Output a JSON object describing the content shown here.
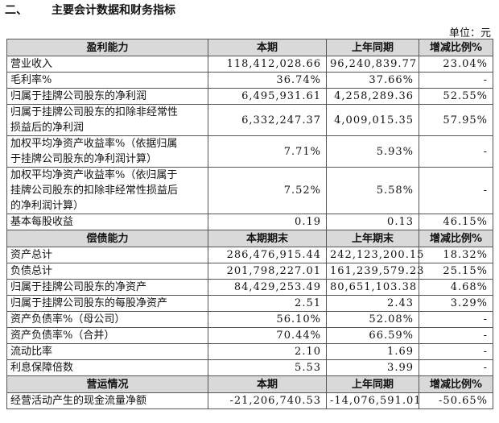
{
  "heading": {
    "number": "二、",
    "text": "主要会计数据和财务指标"
  },
  "unit": "单位：元",
  "sections": [
    {
      "header": [
        "盈利能力",
        "本期",
        "上年同期",
        "增减比例%"
      ],
      "rows": [
        [
          "营业收入",
          "118,412,028.66",
          "96,240,839.77",
          "23.04%"
        ],
        [
          "毛利率%",
          "36.74%",
          "37.66%",
          "-"
        ],
        [
          "归属于挂牌公司股东的净利润",
          "6,495,931.61",
          "4,258,289.36",
          "52.55%"
        ],
        [
          "归属于挂牌公司股东的扣除非经常性损益后的净利润",
          "6,332,247.37",
          "4,009,015.35",
          "57.95%"
        ],
        [
          "加权平均净资产收益率%（依据归属于挂牌公司股东的净利润计算）",
          "7.71%",
          "5.93%",
          "-"
        ],
        [
          "加权平均净资产收益率%（依归属于挂牌公司股东的扣除非经常性损益后的净利润计算）",
          "7.52%",
          "5.58%",
          "-"
        ],
        [
          "基本每股收益",
          "0.19",
          "0.13",
          "46.15%"
        ]
      ]
    },
    {
      "header": [
        "偿债能力",
        "本期期末",
        "上年期末",
        "增减比例%"
      ],
      "rows": [
        [
          "资产总计",
          "286,476,915.44",
          "242,123,200.15",
          "18.32%"
        ],
        [
          "负债总计",
          "201,798,227.01",
          "161,239,579.23",
          "25.15%"
        ],
        [
          "归属于挂牌公司股东的净资产",
          "84,429,253.49",
          "80,651,103.38",
          "4.68%"
        ],
        [
          "归属于挂牌公司股东的每股净资产",
          "2.51",
          "2.43",
          "3.29%"
        ],
        [
          "资产负债率%（母公司）",
          "56.10%",
          "52.08%",
          "-"
        ],
        [
          "资产负债率%（合并）",
          "70.44%",
          "66.59%",
          "-"
        ],
        [
          "流动比率",
          "2.10",
          "1.69",
          "-"
        ],
        [
          "利息保障倍数",
          "5.53",
          "3.99",
          "-"
        ]
      ]
    },
    {
      "header": [
        "营运情况",
        "本期",
        "上年同期",
        "增减比例%"
      ],
      "rows": [
        [
          "经营活动产生的现金流量净额",
          "-21,206,740.53",
          "-14,076,591.01",
          "-50.65%"
        ]
      ]
    }
  ]
}
